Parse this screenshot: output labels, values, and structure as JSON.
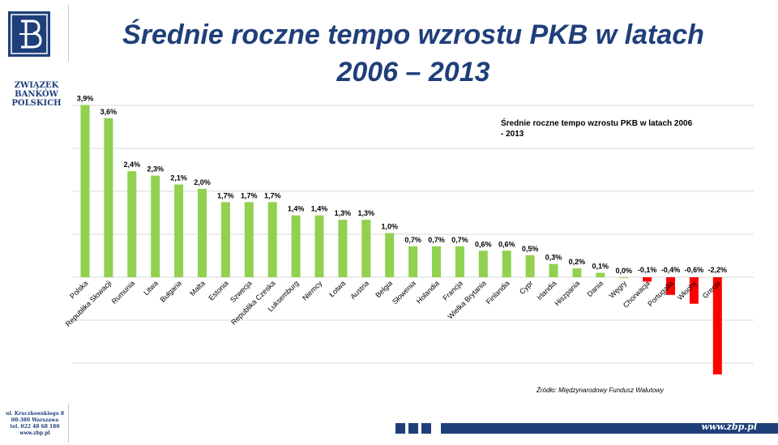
{
  "header": {
    "logo_icon": "bank-seal-icon",
    "org_name": "ZWIĄZEK\nBANKÓW\nPOLSKICH",
    "title_line1": "Średnie roczne tempo wzrostu PKB w latach",
    "title_line2": "2006 – 2013"
  },
  "chart_data": {
    "type": "bar",
    "title_line1": "Średnie roczne tempo wzrostu PKB w latach 2006",
    "title_line2": "- 2013",
    "source": "Źródło: Międzynarodowy Fundusz Walutowy",
    "grid": true,
    "categories": [
      "Polska",
      "Republika Słowacji",
      "Rumunia",
      "Litwa",
      "Bułgaria",
      "Malta",
      "Estonia",
      "Szwecja",
      "Republika Czeska",
      "Luksemburg",
      "Niemcy",
      "Łotwa",
      "Austria",
      "Belgia",
      "Słowenia",
      "Holandia",
      "Francja",
      "Wielka Brytania",
      "Finlandia",
      "Cypr",
      "Irlandia",
      "Hiszpania",
      "Dania",
      "Węgry",
      "Chorwacja",
      "Portugalia",
      "Włochy",
      "Grecja"
    ],
    "values": [
      3.9,
      3.6,
      2.4,
      2.3,
      2.1,
      2.0,
      1.7,
      1.7,
      1.7,
      1.4,
      1.4,
      1.3,
      1.3,
      1.0,
      0.7,
      0.7,
      0.7,
      0.6,
      0.6,
      0.5,
      0.3,
      0.2,
      0.1,
      0.0,
      -0.1,
      -0.4,
      -0.6,
      -2.2
    ],
    "labels": [
      "3,9%",
      "3,6%",
      "2,4%",
      "2,3%",
      "2,1%",
      "2,0%",
      "1,7%",
      "1,7%",
      "1,7%",
      "1,4%",
      "1,4%",
      "1,3%",
      "1,3%",
      "1,0%",
      "0,7%",
      "0,7%",
      "0,7%",
      "0,6%",
      "0,6%",
      "0,5%",
      "0,3%",
      "0,2%",
      "0,1%",
      "0,0%",
      "-0,1%",
      "-0,4%",
      "-0,6%",
      "-2,2%"
    ],
    "colors": {
      "positive": "#92d050",
      "negative": "#ff0000"
    },
    "ylim": [
      -2.2,
      4.0
    ]
  },
  "footer": {
    "address": "ul. Kruczkowskiego 8\n00-380 Warszawa\ntel. 022 48 68 180\nwww.zbp.pl",
    "website": "www.zbp.pl"
  }
}
